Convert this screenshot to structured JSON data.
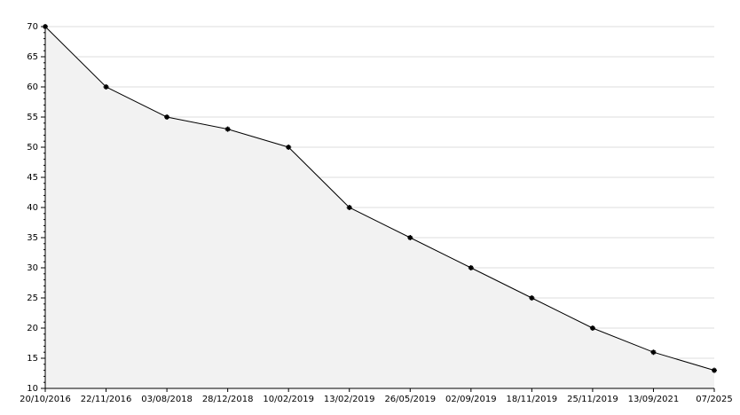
{
  "chart_data": {
    "type": "area",
    "categories": [
      "20/10/2016",
      "22/11/2016",
      "03/08/2018",
      "28/12/2018",
      "10/02/2019",
      "13/02/2019",
      "26/05/2019",
      "02/09/2019",
      "18/11/2019",
      "25/11/2019",
      "13/09/2021",
      "07/2025"
    ],
    "values": [
      70,
      60,
      55,
      53,
      50,
      40,
      35,
      30,
      25,
      20,
      16,
      13
    ],
    "color": "#000000",
    "fill": "#f2f2f2",
    "ylim": [
      10,
      70
    ],
    "yticks": [
      10,
      15,
      20,
      25,
      30,
      35,
      40,
      45,
      50,
      55,
      60,
      65,
      70
    ],
    "grid": true
  }
}
